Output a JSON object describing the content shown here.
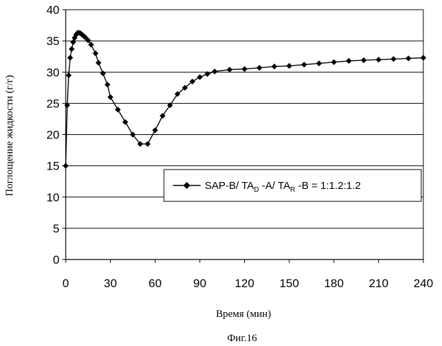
{
  "chart_data": {
    "type": "line",
    "title": "",
    "xlabel": "Время (мин)",
    "ylabel": "Поглощение жидкости (г/г)",
    "xlim": [
      0,
      240
    ],
    "ylim": [
      0,
      40
    ],
    "xticks": [
      0,
      30,
      60,
      90,
      120,
      150,
      180,
      210,
      240
    ],
    "yticks": [
      0,
      5,
      10,
      15,
      20,
      25,
      30,
      35,
      40
    ],
    "grid": "horizontal",
    "legend_position": "center-right",
    "series": [
      {
        "name": "SAP-B/ TA_D -A/ TA_R -B = 1:1.2:1.2",
        "legend": {
          "prefix": "SAP-B/ TA",
          "sub1": "D",
          "mid": " -A/ TA",
          "sub2": "R",
          "suffix": " -B = 1:1.2:1.2"
        },
        "marker": "diamond",
        "color": "#000000",
        "x": [
          0,
          1,
          2,
          3,
          4,
          5,
          6,
          7,
          8,
          9,
          10,
          11,
          12,
          13,
          15,
          17,
          20,
          22,
          25,
          28,
          30,
          35,
          40,
          45,
          50,
          55,
          60,
          65,
          70,
          75,
          80,
          85,
          90,
          95,
          100,
          110,
          120,
          130,
          140,
          150,
          160,
          170,
          180,
          190,
          200,
          210,
          220,
          230,
          240
        ],
        "values": [
          15.0,
          24.7,
          29.5,
          32.3,
          33.7,
          34.8,
          35.5,
          36.0,
          36.3,
          36.3,
          36.2,
          36.0,
          35.8,
          35.6,
          35.1,
          34.4,
          33.0,
          31.5,
          29.8,
          28.0,
          26.0,
          24.0,
          22.0,
          20.0,
          18.5,
          18.5,
          20.7,
          23.0,
          24.7,
          26.5,
          27.5,
          28.5,
          29.2,
          29.7,
          30.1,
          30.4,
          30.5,
          30.7,
          30.9,
          31.0,
          31.2,
          31.4,
          31.6,
          31.8,
          31.9,
          32.0,
          32.1,
          32.2,
          32.3
        ]
      }
    ]
  },
  "caption": "Фиг.16"
}
